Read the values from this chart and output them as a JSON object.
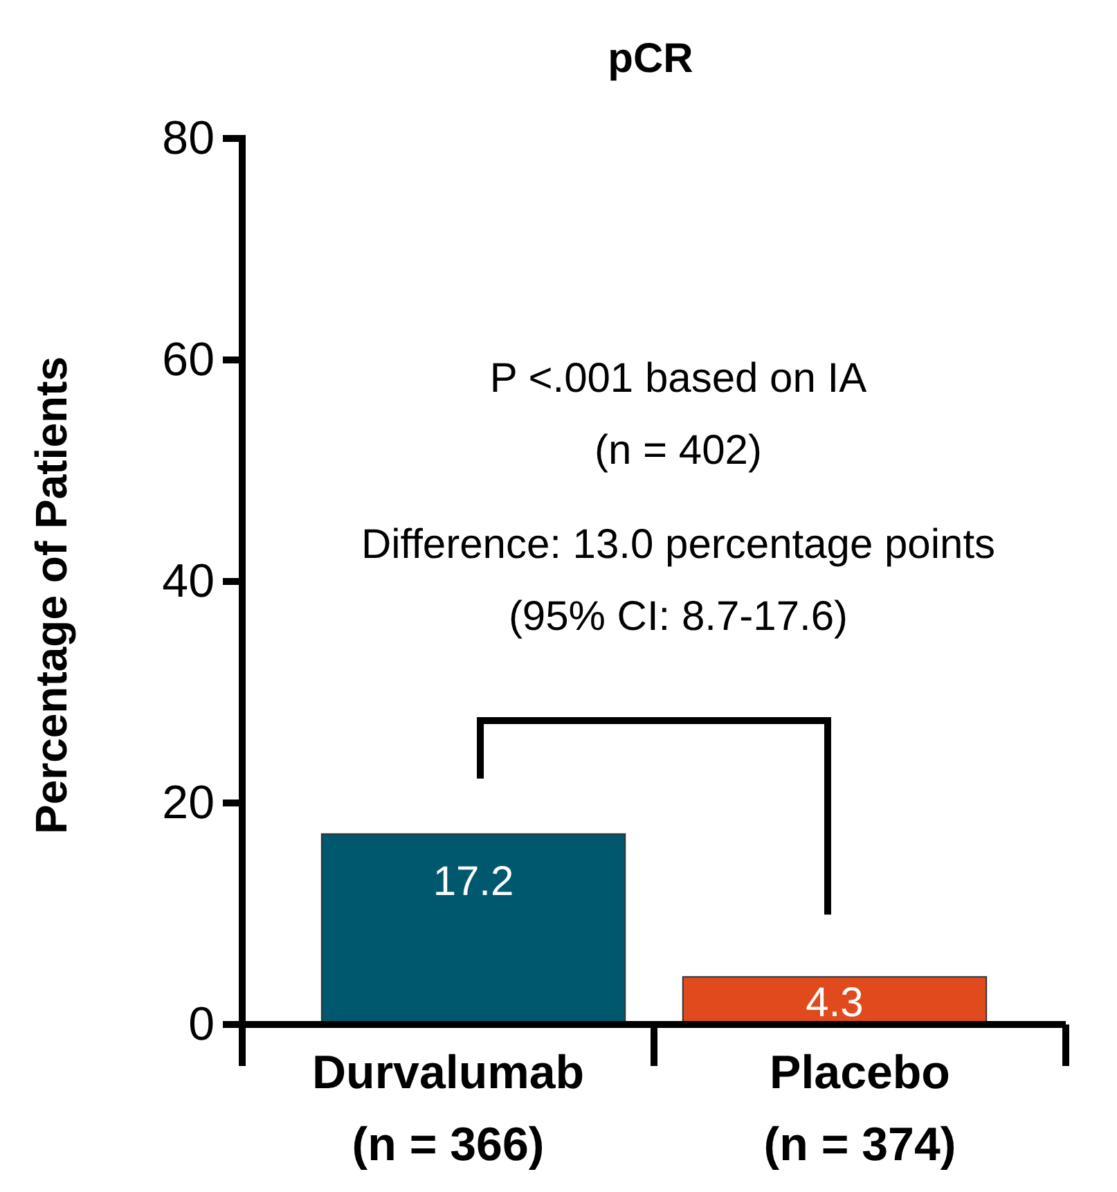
{
  "chart_data": {
    "type": "bar",
    "title": "pCR",
    "ylabel": "Percentage of Patients",
    "categories": [
      "Durvalumab\n(n = 366)",
      "Placebo\n(n = 374)"
    ],
    "values": [
      17.2,
      4.3
    ],
    "colors": [
      "#00586f",
      "#e04a1c"
    ],
    "ylim": [
      0,
      80
    ],
    "yticks": [
      0,
      20,
      40,
      60,
      80
    ],
    "data_labels": true,
    "grid": false,
    "annotations": [
      "P <.001 based on IA",
      "(n = 402)",
      "Difference: 13.0 percentage points",
      "(95% CI: 8.7-17.6)"
    ]
  }
}
